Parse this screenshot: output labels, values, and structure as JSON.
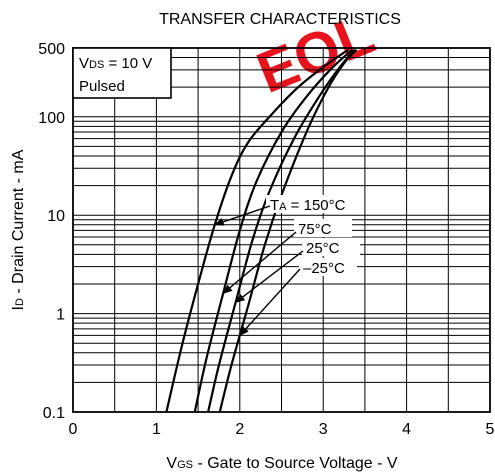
{
  "chart_data": {
    "type": "line",
    "title": "TRANSFER CHARACTERISTICS",
    "watermark": "EOL",
    "xlabel": {
      "main": "V",
      "sub": "GS",
      "rest": " - Gate to Source Voltage - V"
    },
    "ylabel": {
      "main": "I",
      "sub": "D",
      "rest": " - Drain Current - mA"
    },
    "xlim": [
      0,
      5
    ],
    "ylim": [
      0.1,
      500
    ],
    "yscale": "log",
    "grid": true,
    "x_ticks": [
      {
        "v": 0,
        "label": "0"
      },
      {
        "v": 1,
        "label": "1"
      },
      {
        "v": 2,
        "label": "2"
      },
      {
        "v": 3,
        "label": "3"
      },
      {
        "v": 4,
        "label": "4"
      },
      {
        "v": 5,
        "label": "5"
      }
    ],
    "y_ticks": [
      {
        "v": 0.1,
        "label": "0.1"
      },
      {
        "v": 1,
        "label": "1"
      },
      {
        "v": 10,
        "label": "10"
      },
      {
        "v": 100,
        "label": "100"
      },
      {
        "v": 500,
        "label": "500"
      }
    ],
    "conditions": {
      "line1_main": "V",
      "line1_sub": "DS",
      "line1_rest": " = 10 V",
      "line2": "Pulsed"
    },
    "series": [
      {
        "name": "150°C",
        "label_main": "T",
        "label_sub": "A",
        "label_rest": " = 150°C",
        "x": [
          1.12,
          1.3,
          1.5,
          1.7,
          1.9,
          2.1,
          2.4,
          2.7,
          3.0,
          3.3
        ],
        "y": [
          0.1,
          0.45,
          2.0,
          8.0,
          25,
          55,
          110,
          200,
          320,
          480
        ],
        "arrow_at": 1.7
      },
      {
        "name": "75°C",
        "label_main": "75°C",
        "x": [
          1.46,
          1.6,
          1.8,
          2.0,
          2.2,
          2.5,
          2.8,
          3.1,
          3.35
        ],
        "y": [
          0.1,
          0.35,
          1.6,
          7.0,
          22,
          70,
          160,
          310,
          480
        ],
        "arrow_at": 1.8
      },
      {
        "name": "25°C",
        "label_main": "25°C",
        "x": [
          1.62,
          1.75,
          1.95,
          2.15,
          2.35,
          2.65,
          2.95,
          3.2,
          3.38
        ],
        "y": [
          0.1,
          0.3,
          1.3,
          5.5,
          17,
          60,
          160,
          320,
          480
        ],
        "arrow_at": 1.95
      },
      {
        "name": "-25°C",
        "label_main": "–25°C",
        "x": [
          1.76,
          1.9,
          2.1,
          2.3,
          2.5,
          2.8,
          3.05,
          3.25,
          3.4
        ],
        "y": [
          0.1,
          0.3,
          1.2,
          5.0,
          16,
          70,
          190,
          350,
          480
        ],
        "arrow_at": 2.0
      }
    ]
  }
}
